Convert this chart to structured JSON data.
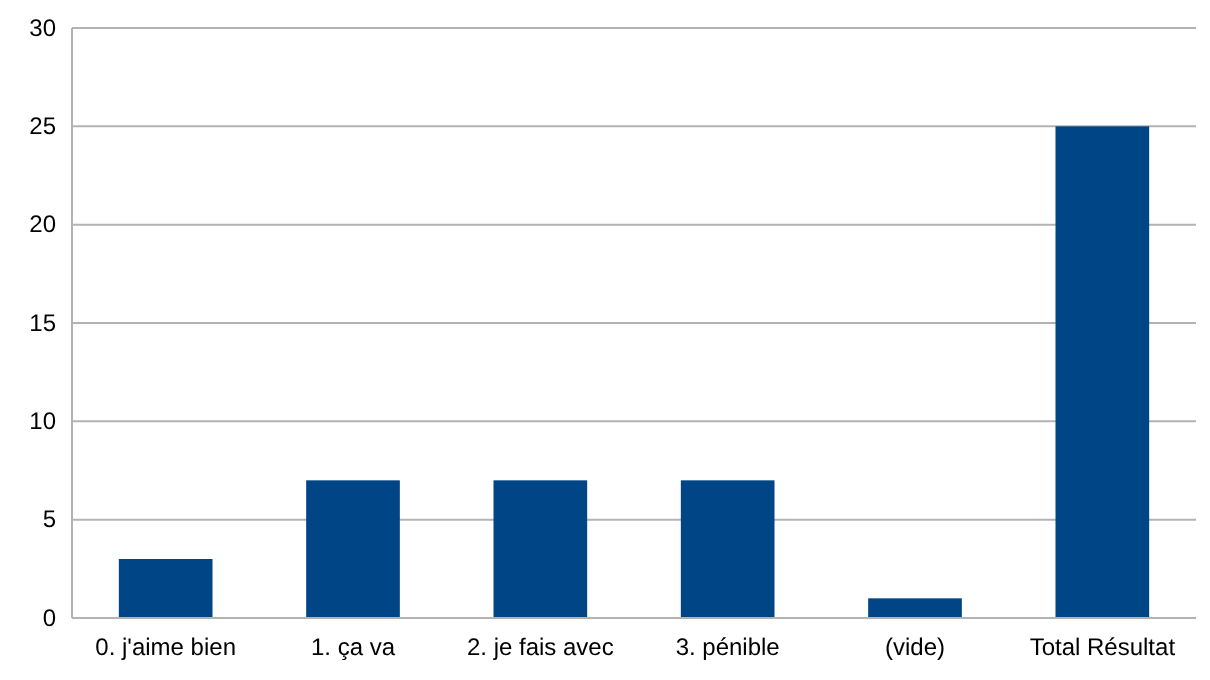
{
  "chart_data": {
    "type": "bar",
    "categories": [
      "0. j'aime bien",
      "1. ça va",
      "2. je fais avec",
      "3. pénible",
      "(vide)",
      "Total Résultat"
    ],
    "values": [
      3,
      7,
      7,
      7,
      1,
      25
    ],
    "color": "#004586",
    "ylim": [
      0,
      30
    ],
    "yticks": [
      0,
      5,
      10,
      15,
      20,
      25,
      30
    ],
    "grid": "y"
  }
}
